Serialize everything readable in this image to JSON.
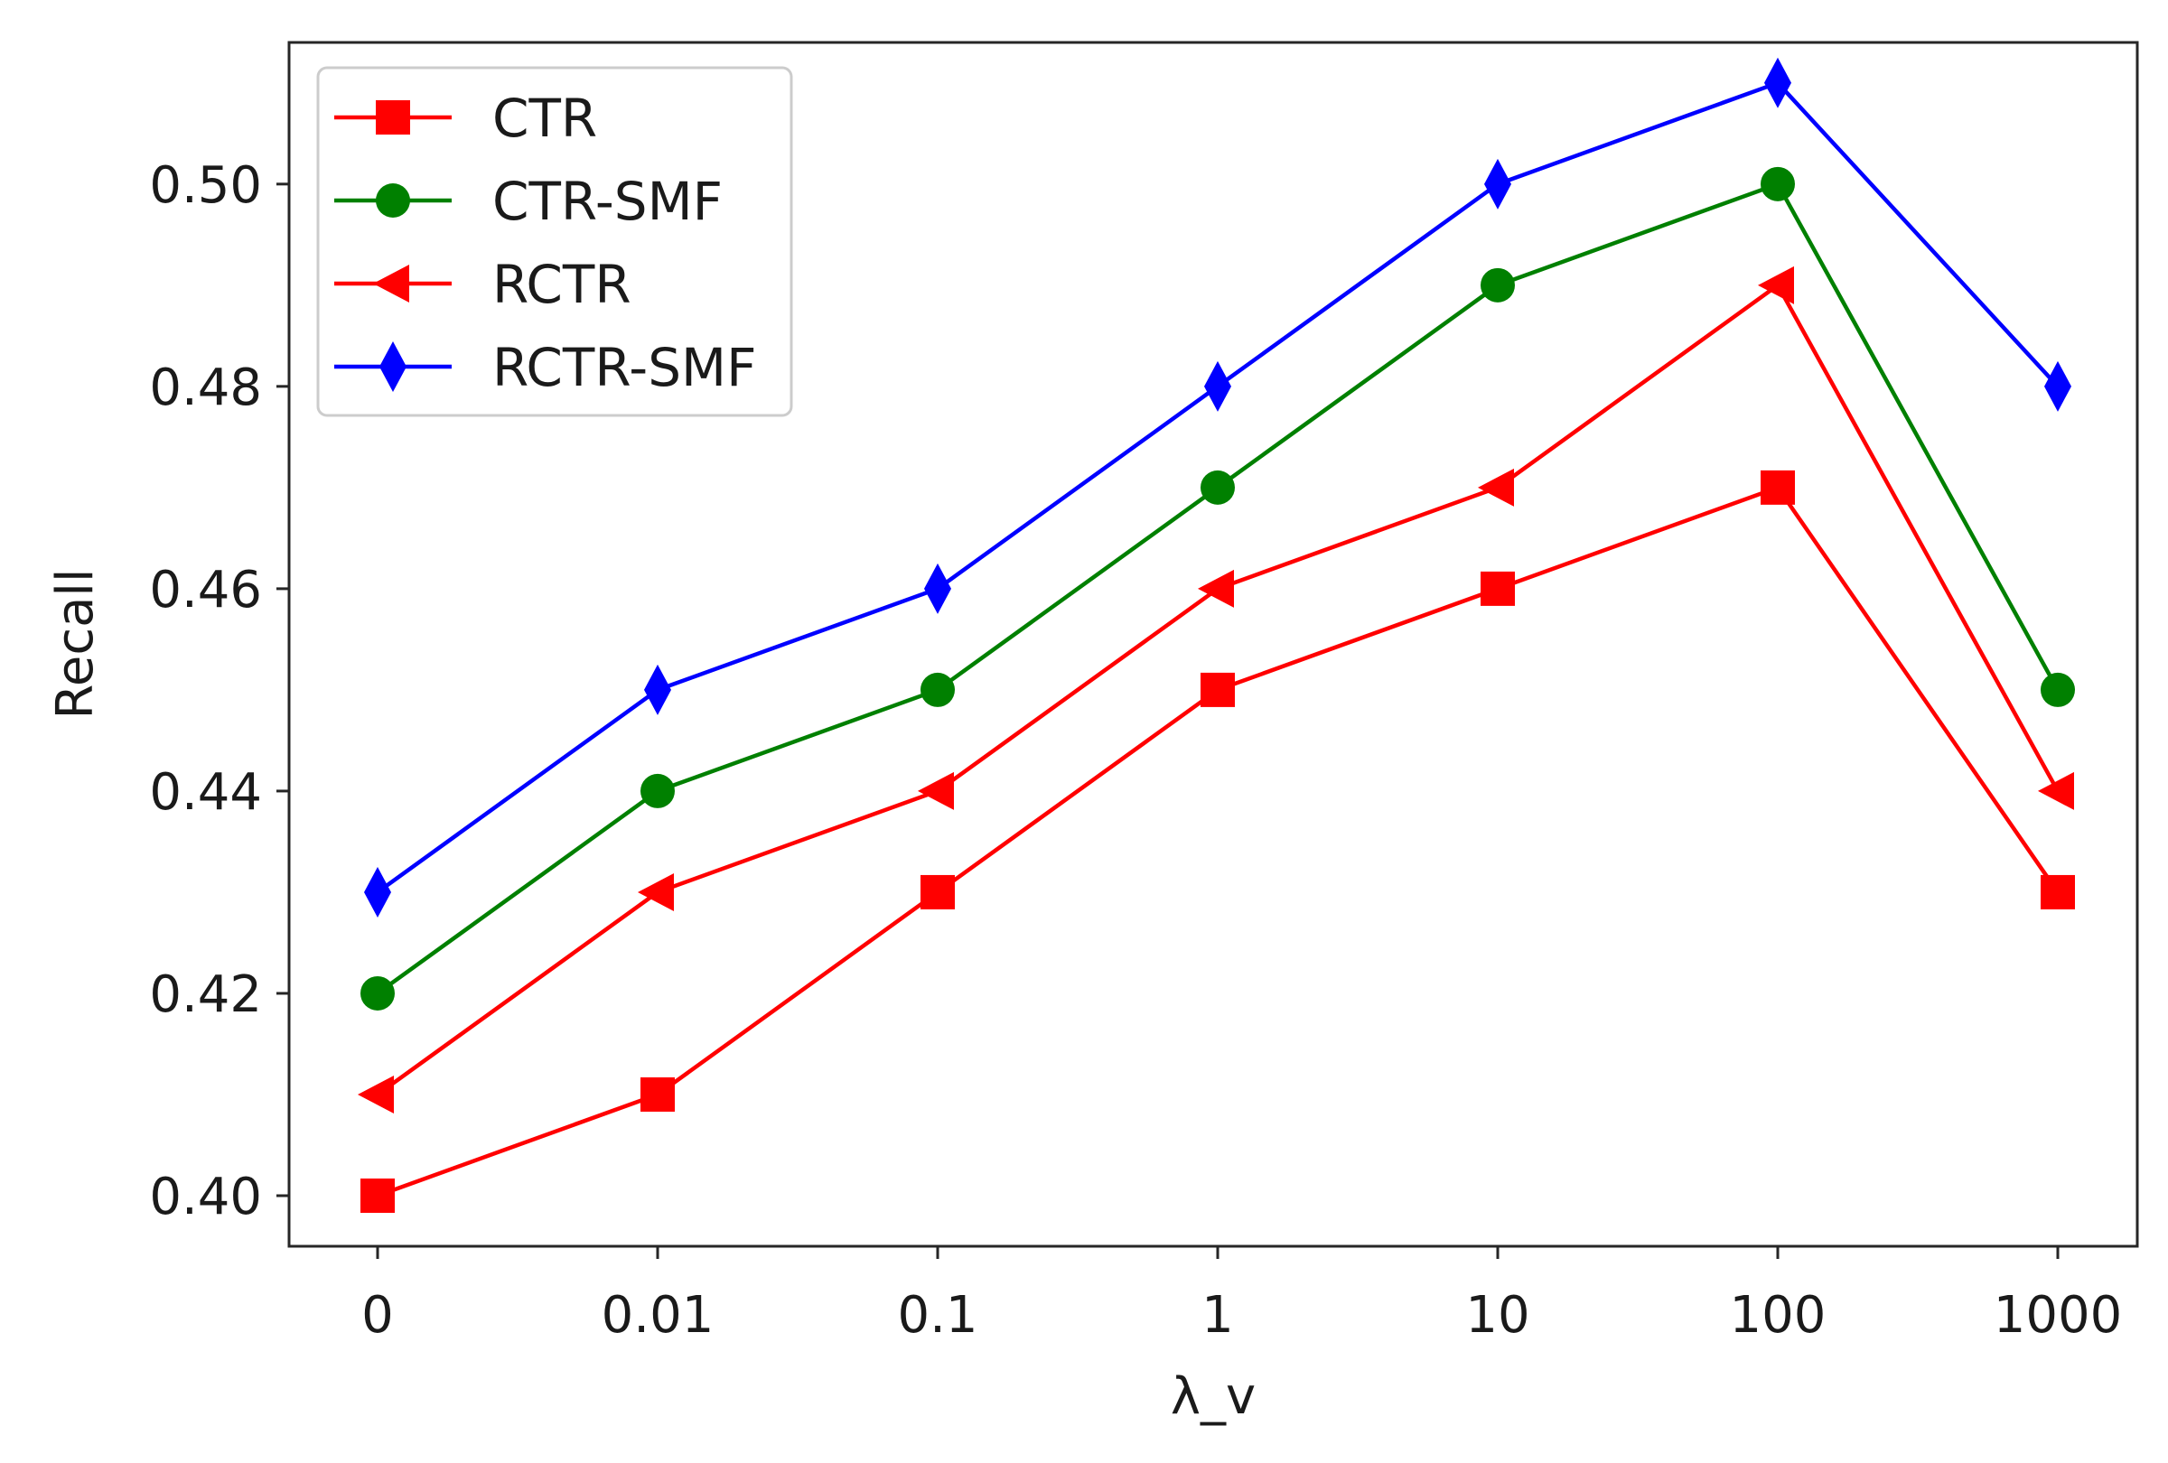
{
  "chart_data": {
    "type": "line",
    "title": "",
    "xlabel": "λ_v",
    "ylabel": "Recall",
    "categories": [
      "0",
      "0.01",
      "0.1",
      "1",
      "10",
      "100",
      "1000"
    ],
    "ylim": [
      0.395,
      0.514
    ],
    "yticks": [
      0.4,
      0.42,
      0.44,
      0.46,
      0.48,
      0.5
    ],
    "ytick_labels": [
      "0.40",
      "0.42",
      "0.44",
      "0.46",
      "0.48",
      "0.50"
    ],
    "grid": false,
    "legend_position": "top-left",
    "series": [
      {
        "name": "CTR",
        "color": "#ff0000",
        "marker": "square",
        "values": [
          0.4,
          0.41,
          0.43,
          0.45,
          0.46,
          0.47,
          0.43
        ]
      },
      {
        "name": "CTR-SMF",
        "color": "#008000",
        "marker": "circle",
        "values": [
          0.42,
          0.44,
          0.45,
          0.47,
          0.49,
          0.5,
          0.45
        ]
      },
      {
        "name": "RCTR",
        "color": "#ff0000",
        "marker": "triangle-left",
        "values": [
          0.41,
          0.43,
          0.44,
          0.46,
          0.47,
          0.49,
          0.44
        ]
      },
      {
        "name": "RCTR-SMF",
        "color": "#0000ff",
        "marker": "thin-diamond",
        "values": [
          0.43,
          0.45,
          0.46,
          0.48,
          0.5,
          0.51,
          0.48
        ]
      }
    ]
  }
}
